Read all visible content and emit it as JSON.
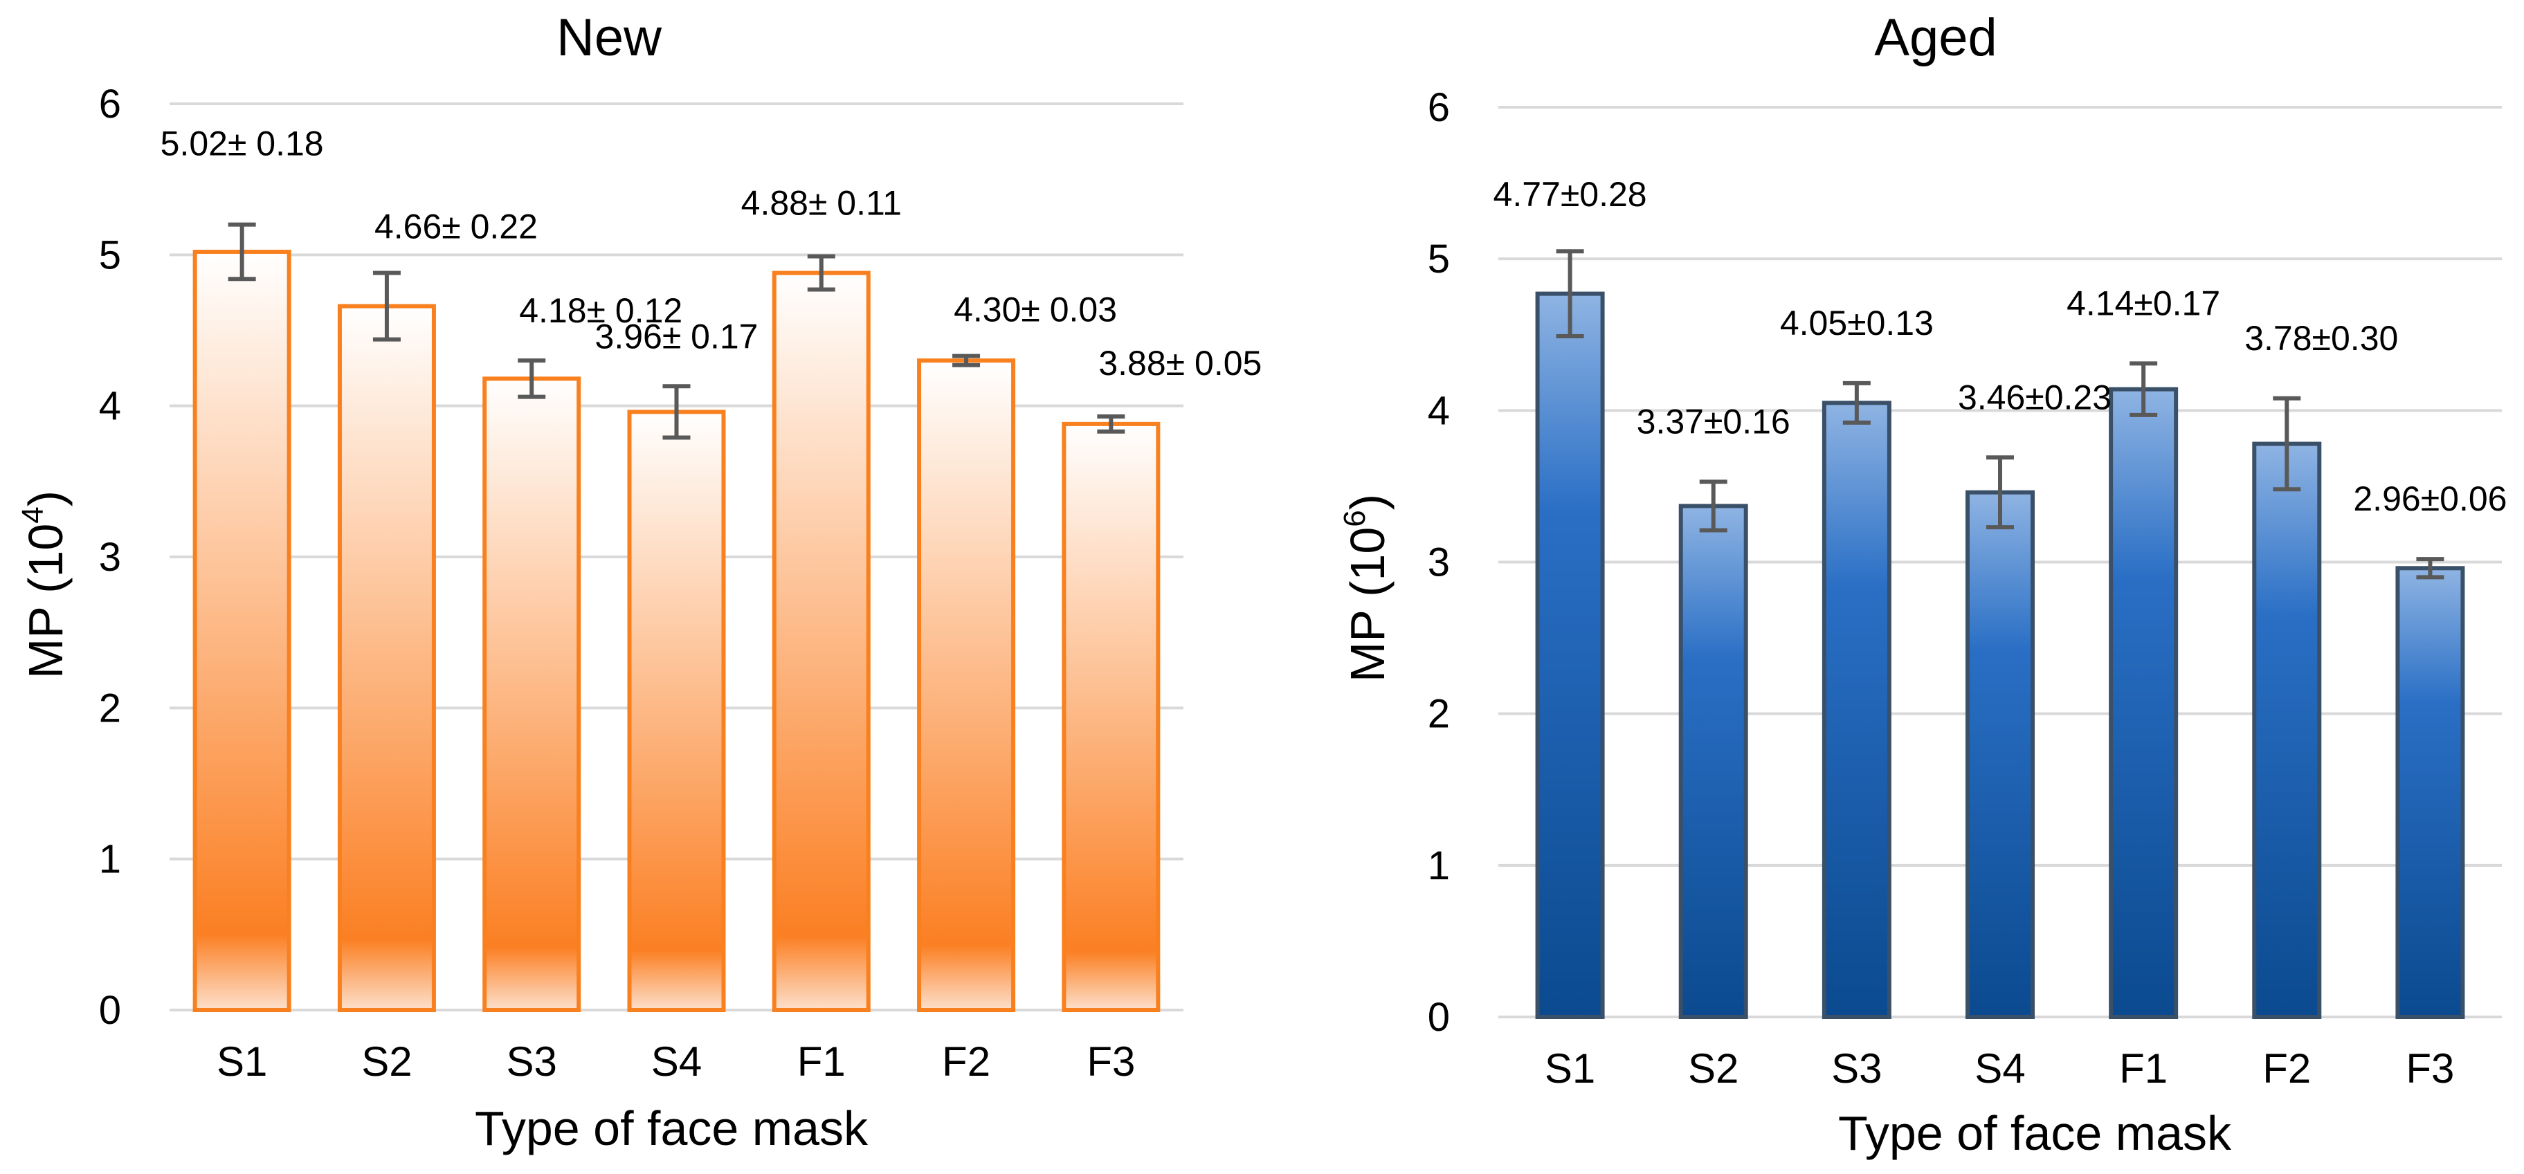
{
  "chart_data": [
    {
      "type": "bar",
      "title": "New",
      "xlabel": "Type of face mask",
      "ylabel": "MP (10",
      "ylabel_exponent": "4",
      "ylabel_close": ")",
      "categories": [
        "S1",
        "S2",
        "S3",
        "S4",
        "F1",
        "F2",
        "F3"
      ],
      "values": [
        5.02,
        4.66,
        4.18,
        3.96,
        4.88,
        4.3,
        3.88
      ],
      "errors": [
        0.18,
        0.22,
        0.12,
        0.17,
        0.11,
        0.03,
        0.05
      ],
      "data_labels": [
        "5.02± 0.18",
        "4.66± 0.22",
        "4.18± 0.12",
        "3.96± 0.17",
        "4.88± 0.11",
        "4.30± 0.03",
        "3.88± 0.05"
      ],
      "yticks": [
        "0",
        "1",
        "2",
        "3",
        "4",
        "5",
        "6"
      ],
      "ylim": [
        0,
        6
      ],
      "grid": true,
      "legend": "none",
      "colors": {
        "fill_top": "#ffffff",
        "fill_bottom": "#fb7f23",
        "edge": "#f8801e",
        "error_bar": "#595959"
      }
    },
    {
      "type": "bar",
      "title": "Aged",
      "xlabel": "Type of face mask",
      "ylabel": "MP (10",
      "ylabel_exponent": "6",
      "ylabel_close": ")",
      "categories": [
        "S1",
        "S2",
        "S3",
        "S4",
        "F1",
        "F2",
        "F3"
      ],
      "values": [
        4.77,
        3.37,
        4.05,
        3.46,
        4.14,
        3.78,
        2.96
      ],
      "errors": [
        0.28,
        0.16,
        0.13,
        0.23,
        0.17,
        0.3,
        0.06
      ],
      "data_labels": [
        "4.77±0.28",
        "3.37±0.16",
        "4.05±0.13",
        "3.46±0.23",
        "4.14±0.17",
        "3.78±0.30",
        "2.96±0.06"
      ],
      "yticks": [
        "0",
        "1",
        "2",
        "3",
        "4",
        "5",
        "6"
      ],
      "ylim": [
        0,
        6
      ],
      "grid": true,
      "legend": "none",
      "colors": {
        "fill_top": "#8fb4e3",
        "fill_mid": "#2a6fc5",
        "fill_bottom": "#0b4a8f",
        "edge": "#3a5068",
        "error_bar": "#595959"
      }
    }
  ]
}
